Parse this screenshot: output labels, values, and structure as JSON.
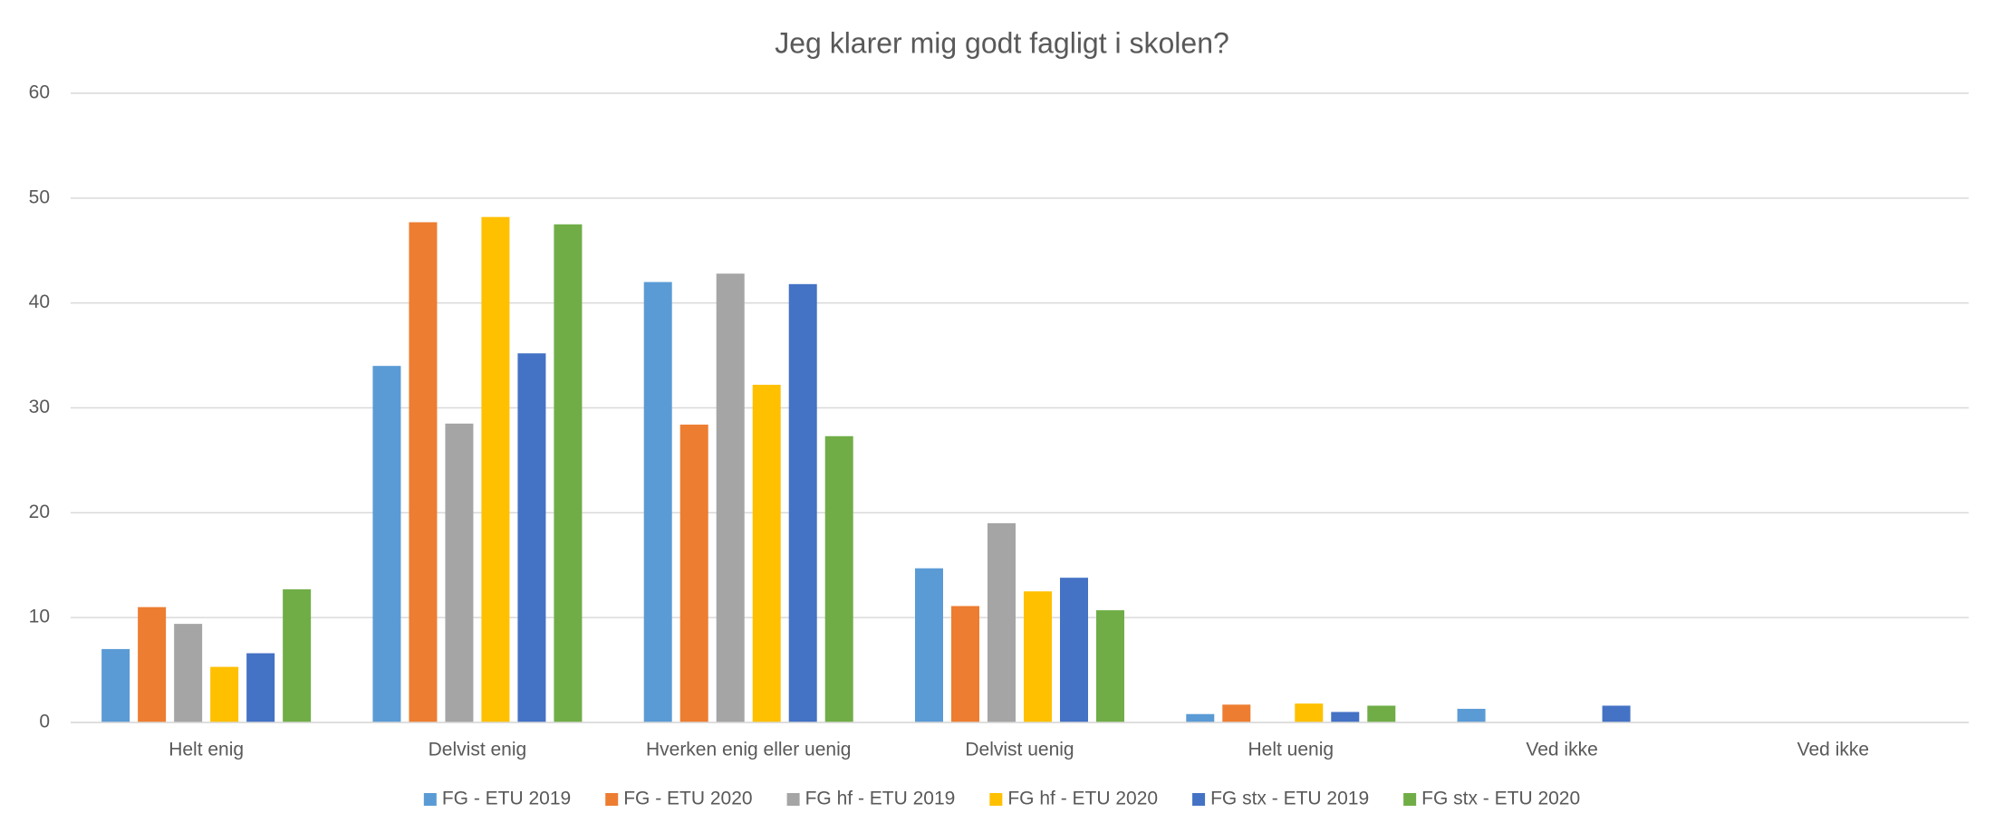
{
  "chart_data": {
    "type": "bar",
    "title": "Jeg klarer mig godt fagligt i skolen?",
    "categories": [
      "Helt enig",
      "Delvist enig",
      "Hverken enig eller uenig",
      "Delvist uenig",
      "Helt uenig",
      "Ved ikke",
      "Ved ikke"
    ],
    "series": [
      {
        "name": "FG - ETU 2019",
        "color": "#5b9bd5",
        "values": [
          7.0,
          34.0,
          42.0,
          14.7,
          0.8,
          1.3,
          0
        ]
      },
      {
        "name": "FG - ETU 2020",
        "color": "#ed7d31",
        "values": [
          11.0,
          47.7,
          28.4,
          11.1,
          1.7,
          0,
          0
        ]
      },
      {
        "name": "FG hf - ETU 2019",
        "color": "#a5a5a5",
        "values": [
          9.4,
          28.5,
          42.8,
          19.0,
          0,
          0,
          0
        ]
      },
      {
        "name": "FG hf - ETU 2020",
        "color": "#ffc000",
        "values": [
          5.3,
          48.2,
          32.2,
          12.5,
          1.8,
          0,
          0
        ]
      },
      {
        "name": "FG stx - ETU 2019",
        "color": "#4472c4",
        "values": [
          6.6,
          35.2,
          41.8,
          13.8,
          1.0,
          1.6,
          0
        ]
      },
      {
        "name": "FG stx - ETU 2020",
        "color": "#70ad47",
        "values": [
          12.7,
          47.5,
          27.3,
          10.7,
          1.6,
          0,
          0
        ]
      }
    ],
    "ylim": [
      0,
      60
    ],
    "yticks": [
      0,
      10,
      20,
      30,
      40,
      50,
      60
    ],
    "grid": true,
    "legend": "bottom"
  }
}
